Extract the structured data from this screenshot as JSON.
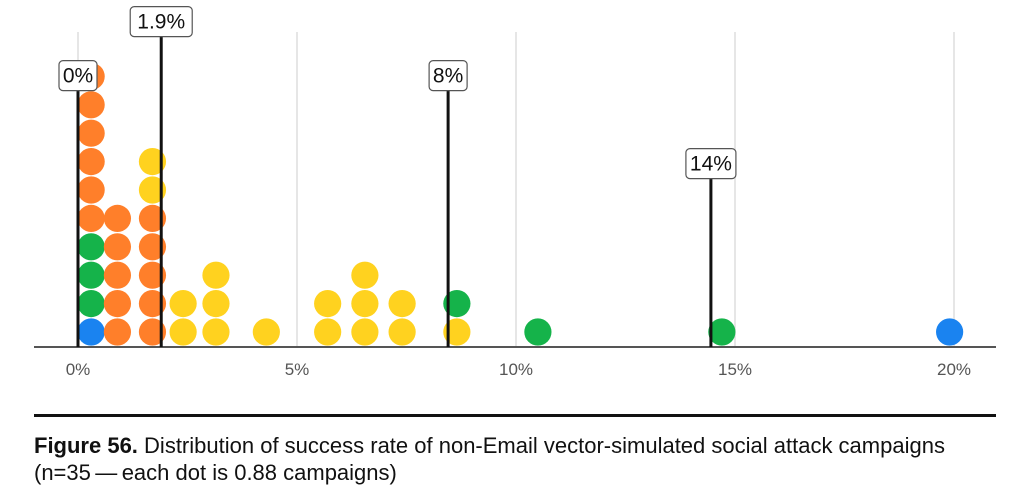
{
  "caption": {
    "label": "Figure 56.",
    "text": "Distribution of success rate of non-Email vector-simulated social attack campaigns (n=35 — each dot is 0.88 campaigns)"
  },
  "colors": {
    "orange": "#ff7f2a",
    "yellow": "#ffd21f",
    "green": "#15b34a",
    "blue": "#1a83f0",
    "grid": "#dddddd",
    "axis": "#555555",
    "line": "#111111"
  },
  "chart_data": {
    "type": "scatter",
    "subtype": "dot-plot",
    "title": "",
    "xlabel": "",
    "ylabel": "",
    "xlim": [
      -0.5,
      21
    ],
    "x_ticks": [
      0,
      5,
      10,
      15,
      20
    ],
    "x_tick_labels": [
      "0%",
      "5%",
      "10%",
      "15%",
      "20%"
    ],
    "grid": true,
    "legend": "none",
    "stacks": [
      {
        "x": 0.3,
        "colors": [
          "blue",
          "green",
          "green",
          "green",
          "orange",
          "orange",
          "orange",
          "orange",
          "orange",
          "orange"
        ]
      },
      {
        "x": 0.9,
        "colors": [
          "orange",
          "orange",
          "orange",
          "orange",
          "orange"
        ]
      },
      {
        "x": 1.7,
        "colors": [
          "orange",
          "orange",
          "orange",
          "orange",
          "orange",
          "yellow",
          "yellow"
        ]
      },
      {
        "x": 2.4,
        "colors": [
          "yellow",
          "yellow"
        ]
      },
      {
        "x": 3.15,
        "colors": [
          "yellow",
          "yellow",
          "yellow"
        ]
      },
      {
        "x": 4.3,
        "colors": [
          "yellow"
        ]
      },
      {
        "x": 5.7,
        "colors": [
          "yellow",
          "yellow"
        ]
      },
      {
        "x": 6.55,
        "colors": [
          "yellow",
          "yellow",
          "yellow"
        ]
      },
      {
        "x": 7.4,
        "colors": [
          "yellow",
          "yellow"
        ]
      },
      {
        "x": 8.65,
        "colors": [
          "yellow",
          "green"
        ]
      },
      {
        "x": 10.5,
        "colors": [
          "green"
        ]
      },
      {
        "x": 14.7,
        "colors": [
          "green"
        ]
      },
      {
        "x": 19.9,
        "colors": [
          "blue"
        ]
      }
    ],
    "reference_lines": [
      {
        "x": 0.0,
        "label": "0%",
        "height_dots": 8.5
      },
      {
        "x": 1.9,
        "label": "1.9%",
        "height_dots": 10.4
      },
      {
        "x": 8.45,
        "label": "8%",
        "height_dots": 8.5
      },
      {
        "x": 14.45,
        "label": "14%",
        "height_dots": 5.4
      }
    ]
  }
}
